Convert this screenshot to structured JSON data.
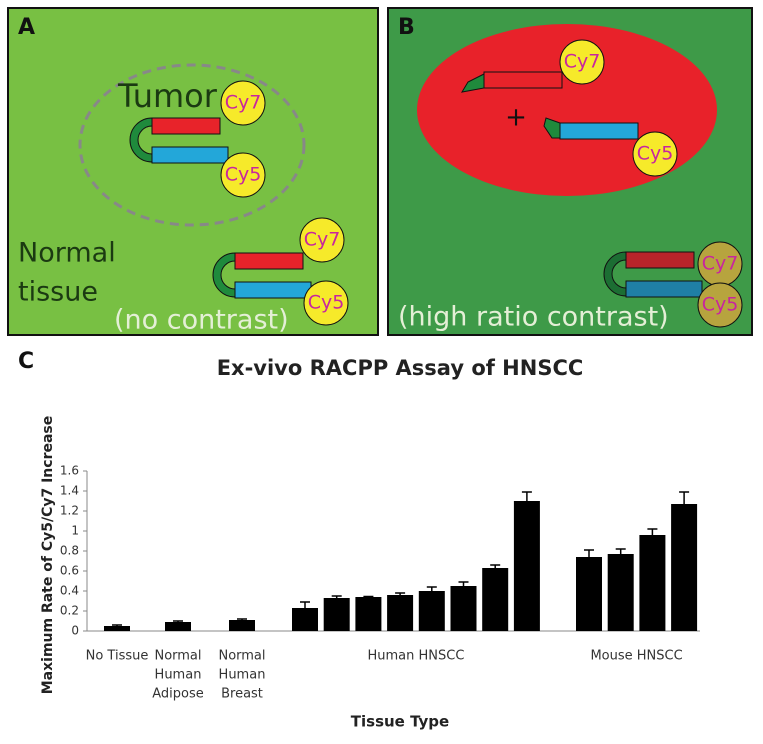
{
  "panel_a": {
    "label": "A",
    "tumor": "Tumor",
    "normal": [
      "Normal",
      "tissue"
    ],
    "caption": "(no contrast)",
    "dyes": [
      "Cy7",
      "Cy5"
    ]
  },
  "panel_b": {
    "label": "B",
    "plus": "+",
    "caption": "(high ratio contrast)",
    "dyes": [
      "Cy7",
      "Cy5"
    ]
  },
  "chart_data": {
    "type": "bar",
    "panel_label": "C",
    "title": "Ex-vivo RACPP Assay of HNSCC",
    "x_label": "Tissue Type",
    "y_label": "Maximum Rate of Cy5/Cy7 Increase",
    "ylim": [
      0,
      1.6
    ],
    "yticks": [
      0,
      0.2,
      0.4,
      0.6,
      0.8,
      1,
      1.2,
      1.4,
      1.6
    ],
    "color": "#000000",
    "groups": [
      {
        "label": [
          "No Tissue"
        ],
        "values": [
          0.05
        ],
        "errors": [
          0.01
        ]
      },
      {
        "label": [
          "Normal",
          "Human",
          "Adipose"
        ],
        "values": [
          0.09
        ],
        "errors": [
          0.01
        ]
      },
      {
        "label": [
          "Normal",
          "Human",
          "Breast"
        ],
        "values": [
          0.11
        ],
        "errors": [
          0.01
        ]
      },
      {
        "label": [
          "Human HNSCC"
        ],
        "values": [
          0.23,
          0.33,
          0.34,
          0.36,
          0.4,
          0.45,
          0.63,
          1.3
        ],
        "errors": [
          0.06,
          0.02,
          0.005,
          0.02,
          0.04,
          0.04,
          0.03,
          0.09
        ]
      },
      {
        "label": [
          "Mouse HNSCC"
        ],
        "values": [
          0.74,
          0.77,
          0.96,
          1.27
        ],
        "errors": [
          0.07,
          0.05,
          0.06,
          0.12
        ]
      }
    ]
  }
}
